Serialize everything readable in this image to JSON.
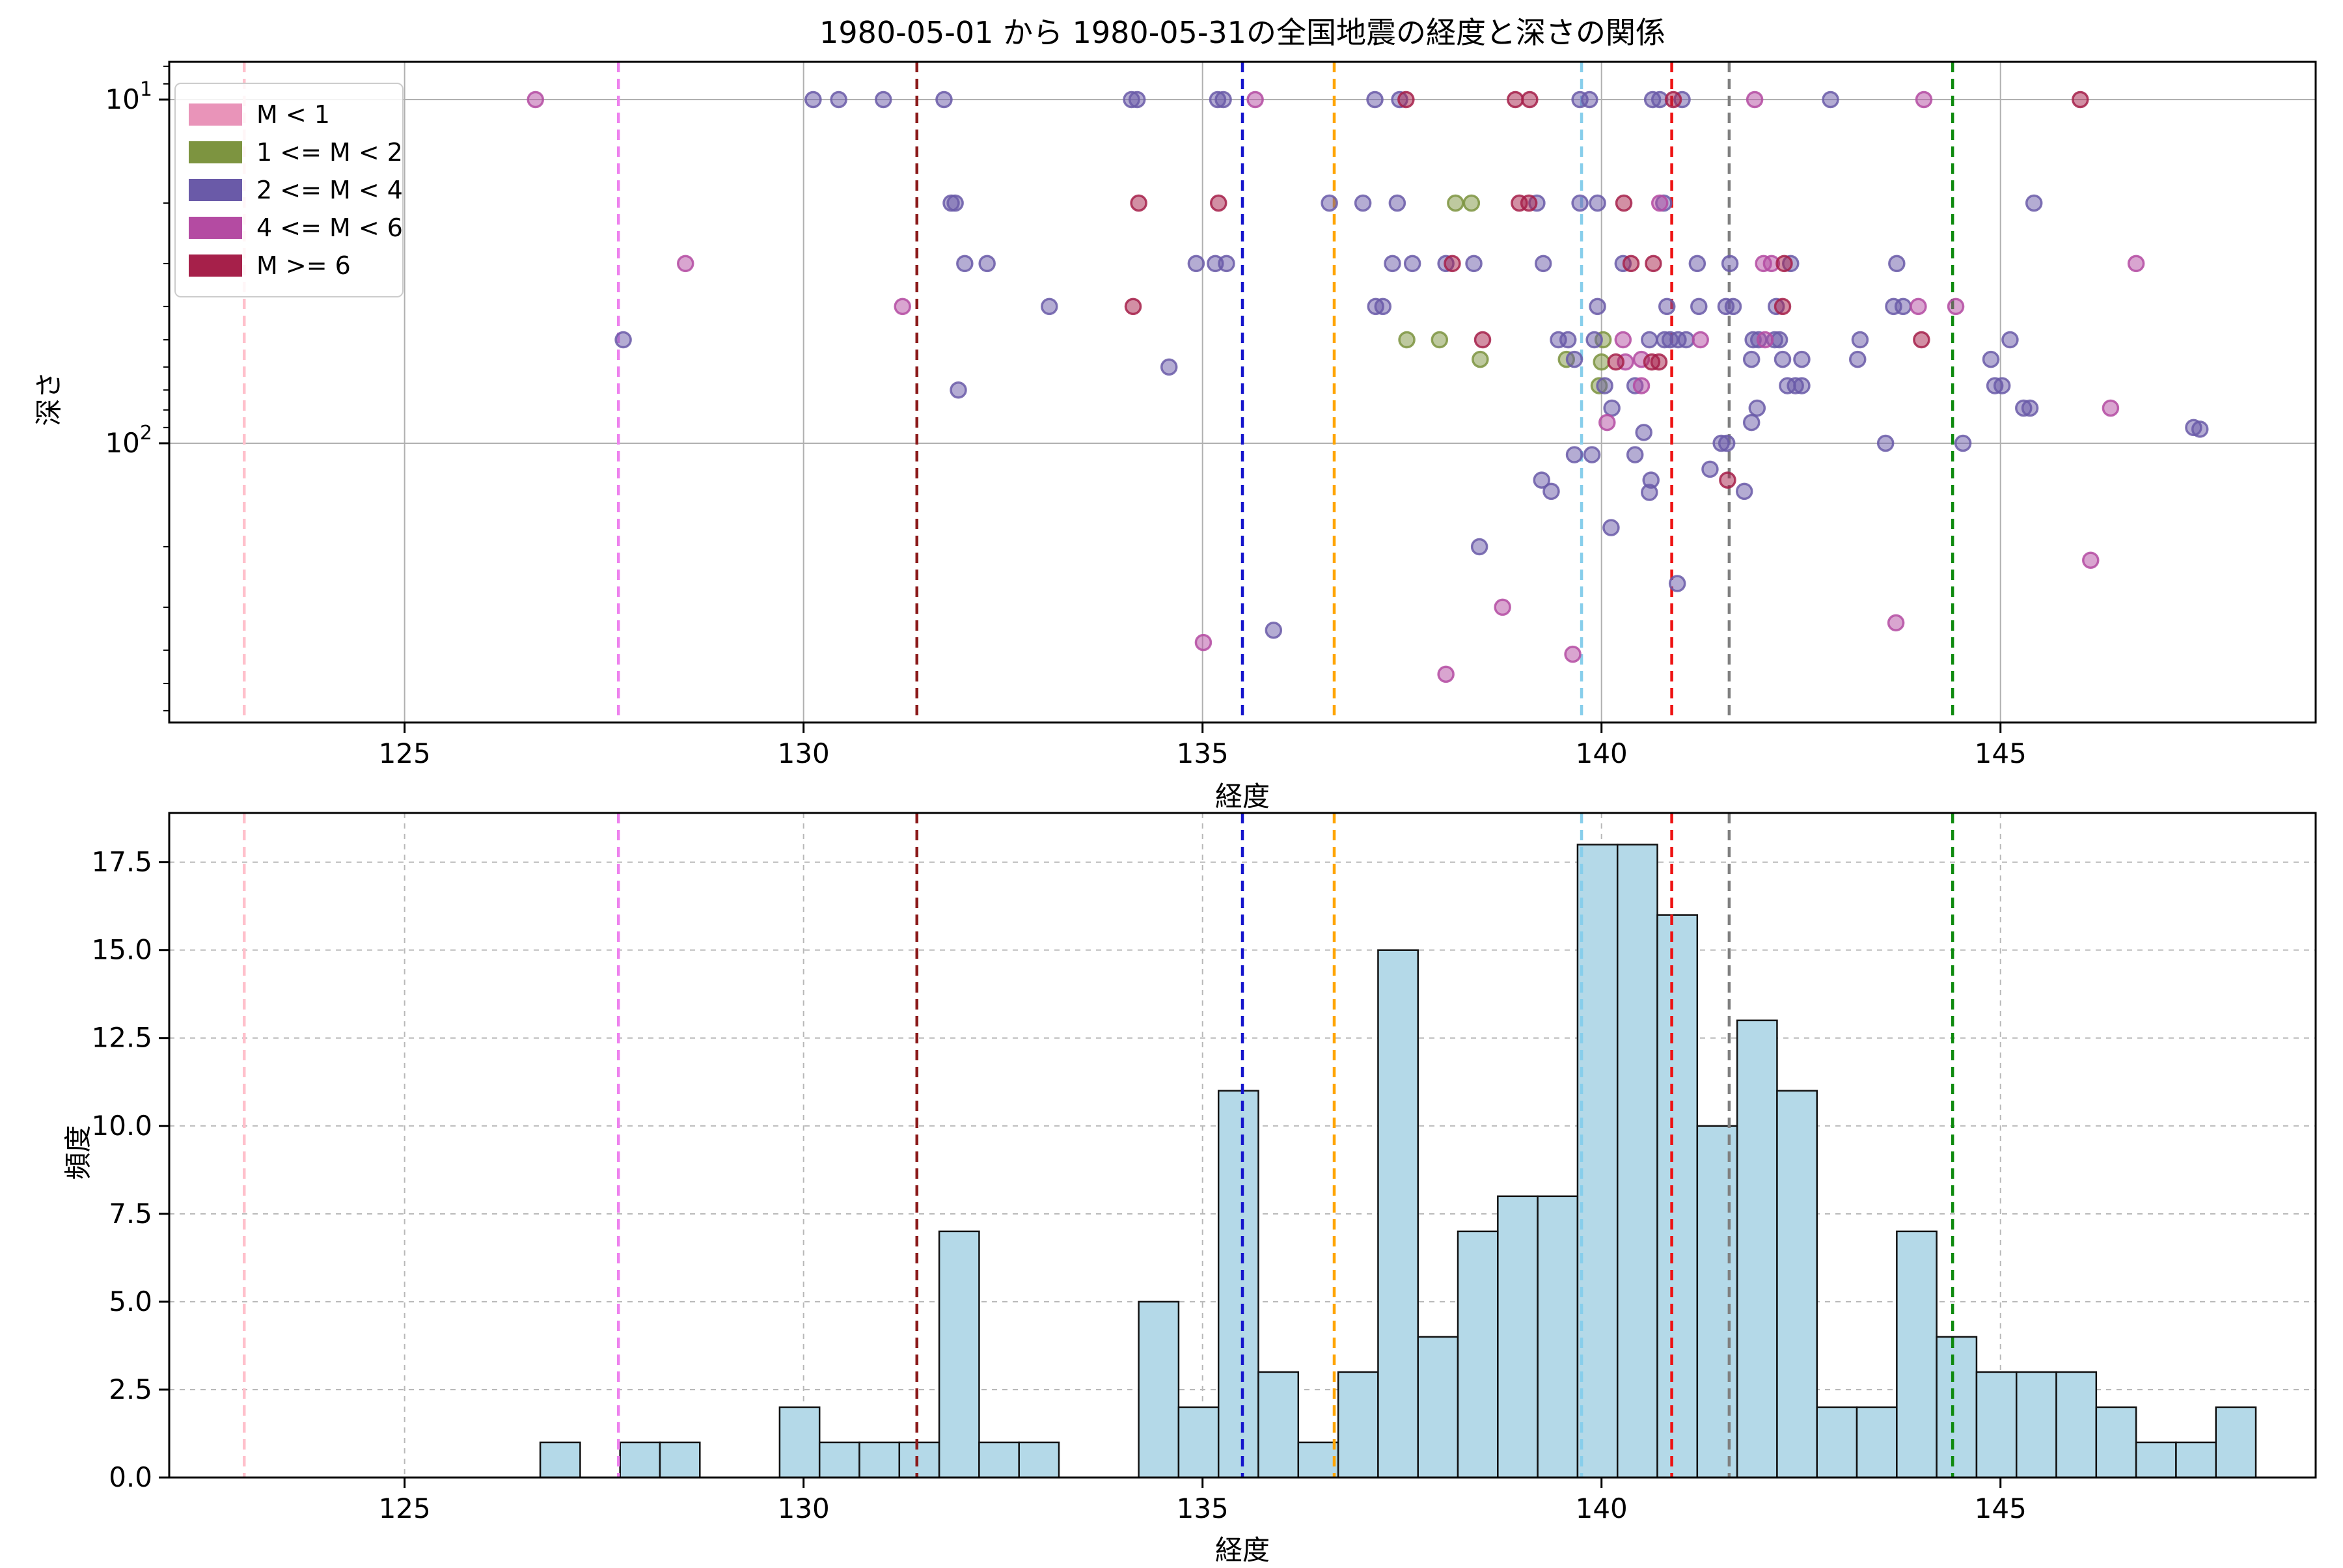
{
  "title": "1980-05-01 から 1980-05-31の全国地震の経度と深さの関係",
  "legend": {
    "items": [
      {
        "label": "M < 1",
        "color": "#E994B9"
      },
      {
        "label": "1 <= M < 2",
        "color": "#7D9440"
      },
      {
        "label": "2 <= M < 4",
        "color": "#6A5AA8"
      },
      {
        "label": "4 <= M < 6",
        "color": "#B44BA2"
      },
      {
        "label": "M >= 6",
        "color": "#A6204A"
      }
    ]
  },
  "chart_data": [
    {
      "type": "scatter",
      "xlabel": "経度",
      "ylabel": "深さ",
      "x_ticks": [
        125,
        130,
        135,
        140,
        145
      ],
      "xlim": [
        122.05,
        148.95
      ],
      "y_scale": "log-inverted",
      "y_ticks": [
        10,
        100
      ],
      "y_minor_ticks": [
        8,
        9,
        20,
        30,
        40,
        50,
        60,
        70,
        80,
        90,
        200,
        300,
        400,
        500,
        600
      ],
      "ylim": [
        7.8,
        644
      ],
      "grid": "solid",
      "legend_position": "upper left",
      "marker_alpha": 0.5,
      "series": [
        {
          "name": "M < 1",
          "color": "#E994B9",
          "points": []
        },
        {
          "name": "1 <= M < 2",
          "color": "#7D9440",
          "points": [
            [
              138.17,
              20
            ],
            [
              138.37,
              20
            ],
            [
              137.56,
              50
            ],
            [
              137.97,
              50
            ],
            [
              140.02,
              50
            ],
            [
              138.48,
              57
            ],
            [
              139.56,
              57
            ],
            [
              140.0,
              58
            ],
            [
              139.97,
              68
            ]
          ]
        },
        {
          "name": "2 <= M < 4",
          "color": "#6A5AA8",
          "points": [
            [
              127.74,
              50
            ],
            [
              130.12,
              10
            ],
            [
              130.44,
              10
            ],
            [
              131.0,
              10
            ],
            [
              131.76,
              10
            ],
            [
              134.11,
              10
            ],
            [
              134.18,
              10
            ],
            [
              135.19,
              10
            ],
            [
              135.26,
              10
            ],
            [
              137.16,
              10
            ],
            [
              137.47,
              10
            ],
            [
              139.73,
              10
            ],
            [
              139.85,
              10
            ],
            [
              140.64,
              10
            ],
            [
              140.73,
              10
            ],
            [
              141.01,
              10
            ],
            [
              142.87,
              10
            ],
            [
              131.85,
              20
            ],
            [
              131.9,
              20
            ],
            [
              136.59,
              20
            ],
            [
              137.01,
              20
            ],
            [
              137.44,
              20
            ],
            [
              139.19,
              20
            ],
            [
              139.73,
              20
            ],
            [
              139.95,
              20
            ],
            [
              140.78,
              20
            ],
            [
              145.42,
              20
            ],
            [
              132.02,
              30
            ],
            [
              132.3,
              30
            ],
            [
              134.92,
              30
            ],
            [
              135.16,
              30
            ],
            [
              135.3,
              30
            ],
            [
              137.38,
              30
            ],
            [
              137.63,
              30
            ],
            [
              138.05,
              30
            ],
            [
              138.4,
              30
            ],
            [
              139.27,
              30
            ],
            [
              140.27,
              30
            ],
            [
              141.2,
              30
            ],
            [
              141.61,
              30
            ],
            [
              142.37,
              30
            ],
            [
              143.7,
              30
            ],
            [
              133.08,
              40
            ],
            [
              137.17,
              40
            ],
            [
              137.26,
              40
            ],
            [
              139.95,
              40
            ],
            [
              140.82,
              40
            ],
            [
              141.22,
              40
            ],
            [
              141.56,
              40
            ],
            [
              141.65,
              40
            ],
            [
              142.19,
              40
            ],
            [
              143.66,
              40
            ],
            [
              143.78,
              40
            ],
            [
              139.46,
              50
            ],
            [
              139.58,
              50
            ],
            [
              139.91,
              50
            ],
            [
              140.6,
              50
            ],
            [
              140.79,
              50
            ],
            [
              140.86,
              50
            ],
            [
              140.96,
              50
            ],
            [
              141.06,
              50
            ],
            [
              141.9,
              50
            ],
            [
              141.97,
              50
            ],
            [
              142.17,
              50
            ],
            [
              142.23,
              50
            ],
            [
              143.24,
              50
            ],
            [
              145.12,
              50
            ],
            [
              134.58,
              60
            ],
            [
              139.66,
              57
            ],
            [
              141.88,
              57
            ],
            [
              142.27,
              57
            ],
            [
              142.51,
              57
            ],
            [
              143.21,
              57
            ],
            [
              144.88,
              57
            ],
            [
              131.94,
              70
            ],
            [
              140.04,
              68
            ],
            [
              140.42,
              68
            ],
            [
              142.33,
              68
            ],
            [
              142.43,
              68
            ],
            [
              142.51,
              68
            ],
            [
              144.93,
              68
            ],
            [
              145.02,
              68
            ],
            [
              140.13,
              79
            ],
            [
              141.95,
              79
            ],
            [
              145.29,
              79
            ],
            [
              145.37,
              79
            ],
            [
              141.88,
              87
            ],
            [
              140.53,
              93
            ],
            [
              147.42,
              90
            ],
            [
              147.5,
              91
            ],
            [
              141.5,
              100
            ],
            [
              141.57,
              100
            ],
            [
              143.56,
              100
            ],
            [
              144.53,
              100
            ],
            [
              139.66,
              108
            ],
            [
              139.88,
              108
            ],
            [
              140.42,
              108
            ],
            [
              141.36,
              119
            ],
            [
              139.25,
              128
            ],
            [
              140.62,
              128
            ],
            [
              139.37,
              138
            ],
            [
              140.6,
              139
            ],
            [
              141.79,
              138
            ],
            [
              140.12,
              176
            ],
            [
              138.47,
              200
            ],
            [
              140.95,
              256
            ],
            [
              135.89,
              350
            ]
          ]
        },
        {
          "name": "4 <= M < 6",
          "color": "#B44BA2",
          "points": [
            [
              126.64,
              10
            ],
            [
              135.66,
              10
            ],
            [
              141.92,
              10
            ],
            [
              144.04,
              10
            ],
            [
              140.73,
              20
            ],
            [
              128.52,
              30
            ],
            [
              142.03,
              30
            ],
            [
              142.13,
              30
            ],
            [
              146.7,
              30
            ],
            [
              131.24,
              40
            ],
            [
              143.97,
              40
            ],
            [
              144.44,
              40
            ],
            [
              140.27,
              50
            ],
            [
              141.24,
              50
            ],
            [
              142.05,
              50
            ],
            [
              140.5,
              57
            ],
            [
              140.3,
              58
            ],
            [
              140.5,
              68
            ],
            [
              146.38,
              79
            ],
            [
              140.07,
              87
            ],
            [
              146.13,
              219
            ],
            [
              138.76,
              300
            ],
            [
              143.69,
              333
            ],
            [
              135.01,
              380
            ],
            [
              139.64,
              411
            ],
            [
              138.05,
              470
            ]
          ]
        },
        {
          "name": "M >= 6",
          "color": "#A6204A",
          "points": [
            [
              137.55,
              10
            ],
            [
              138.92,
              10
            ],
            [
              139.1,
              10
            ],
            [
              140.9,
              10
            ],
            [
              146.0,
              10
            ],
            [
              134.2,
              20
            ],
            [
              135.2,
              20
            ],
            [
              138.97,
              20
            ],
            [
              139.09,
              20
            ],
            [
              140.28,
              20
            ],
            [
              138.13,
              30
            ],
            [
              140.37,
              30
            ],
            [
              140.65,
              30
            ],
            [
              142.29,
              30
            ],
            [
              134.13,
              40
            ],
            [
              142.27,
              40
            ],
            [
              138.51,
              50
            ],
            [
              144.01,
              50
            ],
            [
              140.18,
              58
            ],
            [
              140.63,
              58
            ],
            [
              140.72,
              58
            ],
            [
              141.58,
              128
            ]
          ]
        }
      ],
      "vlines": [
        {
          "x": 122.99,
          "color": "#FFC0CB"
        },
        {
          "x": 127.68,
          "color": "#EE82EE"
        },
        {
          "x": 131.42,
          "color": "#8B1A1A"
        },
        {
          "x": 135.5,
          "color": "#1414CC"
        },
        {
          "x": 136.65,
          "color": "#FFA500"
        },
        {
          "x": 139.75,
          "color": "#87CEEB"
        },
        {
          "x": 140.88,
          "color": "#EE1111"
        },
        {
          "x": 141.6,
          "color": "#7F7F7F"
        },
        {
          "x": 144.4,
          "color": "#0E8A0E"
        }
      ]
    },
    {
      "type": "bar",
      "xlabel": "経度",
      "ylabel": "頻度",
      "x_ticks": [
        125,
        130,
        135,
        140,
        145
      ],
      "y_ticks": [
        0,
        2.5,
        5.0,
        7.5,
        10.0,
        12.5,
        15.0,
        17.5
      ],
      "y_tick_labels": [
        "0.0",
        "2.5",
        "5.0",
        "7.5",
        "10.0",
        "12.5",
        "15.0",
        "17.5"
      ],
      "xlim": [
        122.05,
        148.95
      ],
      "ylim": [
        0,
        18.9
      ],
      "grid": "dashed",
      "bar_color": "#B4D9E8",
      "bar_edge_color": "#111111",
      "bin_width": 0.5,
      "bars": [
        [
          126.7,
          1
        ],
        [
          127.7,
          1
        ],
        [
          128.2,
          1
        ],
        [
          129.7,
          2
        ],
        [
          130.2,
          1
        ],
        [
          130.7,
          1
        ],
        [
          131.2,
          1
        ],
        [
          131.7,
          7
        ],
        [
          132.2,
          1
        ],
        [
          132.7,
          1
        ],
        [
          134.2,
          5
        ],
        [
          134.7,
          2
        ],
        [
          135.2,
          11
        ],
        [
          135.7,
          3
        ],
        [
          136.2,
          1
        ],
        [
          136.7,
          3
        ],
        [
          137.2,
          15
        ],
        [
          137.7,
          4
        ],
        [
          138.2,
          7
        ],
        [
          138.7,
          8
        ],
        [
          139.2,
          8
        ],
        [
          139.7,
          18
        ],
        [
          140.2,
          18
        ],
        [
          140.7,
          16
        ],
        [
          141.2,
          10
        ],
        [
          141.7,
          13
        ],
        [
          142.2,
          11
        ],
        [
          142.7,
          2
        ],
        [
          143.2,
          2
        ],
        [
          143.7,
          7
        ],
        [
          144.2,
          4
        ],
        [
          144.7,
          3
        ],
        [
          145.2,
          3
        ],
        [
          145.7,
          3
        ],
        [
          146.2,
          2
        ],
        [
          146.7,
          1
        ],
        [
          147.2,
          1
        ],
        [
          147.7,
          2
        ]
      ],
      "vlines": [
        {
          "x": 122.99,
          "color": "#FFC0CB"
        },
        {
          "x": 127.68,
          "color": "#EE82EE"
        },
        {
          "x": 131.42,
          "color": "#8B1A1A"
        },
        {
          "x": 135.5,
          "color": "#1414CC"
        },
        {
          "x": 136.65,
          "color": "#FFA500"
        },
        {
          "x": 139.75,
          "color": "#87CEEB"
        },
        {
          "x": 140.88,
          "color": "#EE1111"
        },
        {
          "x": 141.6,
          "color": "#7F7F7F"
        },
        {
          "x": 144.4,
          "color": "#0E8A0E"
        }
      ]
    }
  ]
}
